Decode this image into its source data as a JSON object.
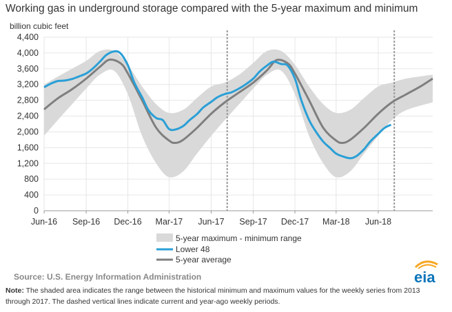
{
  "title": "Working gas in underground  storage compared with the 5-year maximum and minimum",
  "source": "Source:  U.S. Energy Information Administration",
  "note_label": "Note:",
  "note_text": " The shaded area indicates the range between the historical minimum and maximum values for the weekly series from 2013 through 2017. The dashed vertical lines indicate current and year-ago weekly periods.",
  "logo_text": "eia",
  "colors": {
    "range": "#d9d9d9",
    "lower48": "#2a9fd6",
    "average": "#7f7f7f",
    "grid": "#e6e6e6",
    "dashed": "#999999",
    "logo_blue": "#0b74b8",
    "logo_orange": "#f7a823"
  },
  "chart_data": {
    "type": "line",
    "title": "Working gas in underground  storage compared with the 5-year maximum and minimum",
    "ylabel": "billion cubic feet",
    "ylim": [
      0,
      4400
    ],
    "yticks": [
      0,
      400,
      800,
      1200,
      1600,
      2000,
      2400,
      2800,
      3200,
      3600,
      4000,
      4400
    ],
    "ytick_labels": [
      "0",
      "400",
      "800",
      "1,200",
      "1,600",
      "2,000",
      "2,400",
      "2,800",
      "3,200",
      "3,600",
      "4,000",
      "4,400"
    ],
    "xlim": [
      "2016-06-01",
      "2018-09-28"
    ],
    "xticks": [
      "2016-06-01",
      "2016-09-01",
      "2016-12-01",
      "2017-03-01",
      "2017-06-01",
      "2017-09-01",
      "2017-12-01",
      "2018-03-01",
      "2018-06-01"
    ],
    "xtick_labels": [
      "Jun-16",
      "Sep-16",
      "Dec-16",
      "Mar-17",
      "Jun-17",
      "Sep-17",
      "Dec-17",
      "Mar-18",
      "Jun-18"
    ],
    "grid": true,
    "legend_position": "bottom",
    "vlines": [
      "2017-07-06",
      "2018-07-06"
    ],
    "series": [
      {
        "name": "5-year maximum - minimum range",
        "kind": "band",
        "points": [
          [
            "2016-06-01",
            1900,
            3200
          ],
          [
            "2016-07-01",
            2300,
            3400
          ],
          [
            "2016-08-01",
            2700,
            3600
          ],
          [
            "2016-09-01",
            3100,
            3800
          ],
          [
            "2016-10-01",
            3450,
            4050
          ],
          [
            "2016-11-01",
            3550,
            4050
          ],
          [
            "2016-12-01",
            2950,
            3700
          ],
          [
            "2017-01-01",
            1900,
            3150
          ],
          [
            "2017-02-01",
            1200,
            2700
          ],
          [
            "2017-03-01",
            850,
            2480
          ],
          [
            "2017-04-01",
            1000,
            2560
          ],
          [
            "2017-05-01",
            1450,
            2860
          ],
          [
            "2017-06-01",
            1900,
            3150
          ],
          [
            "2017-07-01",
            2300,
            3250
          ],
          [
            "2017-08-01",
            2700,
            3450
          ],
          [
            "2017-09-01",
            3100,
            3750
          ],
          [
            "2017-10-01",
            3450,
            4050
          ],
          [
            "2017-11-01",
            3550,
            4050
          ],
          [
            "2017-12-01",
            2950,
            3700
          ],
          [
            "2018-01-01",
            1900,
            3150
          ],
          [
            "2018-02-01",
            1200,
            2700
          ],
          [
            "2018-03-01",
            850,
            2480
          ],
          [
            "2018-04-01",
            1000,
            2560
          ],
          [
            "2018-05-01",
            1450,
            2860
          ],
          [
            "2018-06-01",
            1900,
            3150
          ],
          [
            "2018-07-01",
            2300,
            3250
          ],
          [
            "2018-08-01",
            2550,
            3350
          ],
          [
            "2018-09-28",
            2750,
            3450
          ]
        ]
      },
      {
        "name": "Lower 48",
        "kind": "line",
        "points": [
          [
            "2016-06-01",
            3130
          ],
          [
            "2016-06-15",
            3220
          ],
          [
            "2016-07-01",
            3290
          ],
          [
            "2016-07-15",
            3300
          ],
          [
            "2016-08-01",
            3340
          ],
          [
            "2016-08-15",
            3400
          ],
          [
            "2016-09-01",
            3480
          ],
          [
            "2016-09-15",
            3600
          ],
          [
            "2016-10-01",
            3780
          ],
          [
            "2016-10-15",
            3950
          ],
          [
            "2016-11-01",
            4040
          ],
          [
            "2016-11-15",
            3990
          ],
          [
            "2016-12-01",
            3690
          ],
          [
            "2016-12-15",
            3250
          ],
          [
            "2017-01-01",
            2880
          ],
          [
            "2017-01-15",
            2550
          ],
          [
            "2017-02-01",
            2350
          ],
          [
            "2017-02-15",
            2300
          ],
          [
            "2017-03-01",
            2070
          ],
          [
            "2017-03-15",
            2060
          ],
          [
            "2017-04-01",
            2150
          ],
          [
            "2017-04-15",
            2300
          ],
          [
            "2017-05-01",
            2450
          ],
          [
            "2017-05-15",
            2620
          ],
          [
            "2017-06-01",
            2760
          ],
          [
            "2017-06-15",
            2880
          ],
          [
            "2017-07-01",
            2960
          ],
          [
            "2017-07-15",
            3000
          ],
          [
            "2017-08-01",
            3100
          ],
          [
            "2017-08-15",
            3200
          ],
          [
            "2017-09-01",
            3350
          ],
          [
            "2017-09-15",
            3530
          ],
          [
            "2017-10-01",
            3680
          ],
          [
            "2017-10-15",
            3780
          ],
          [
            "2017-11-01",
            3720
          ],
          [
            "2017-11-15",
            3680
          ],
          [
            "2017-12-01",
            3350
          ],
          [
            "2017-12-15",
            2800
          ],
          [
            "2018-01-01",
            2300
          ],
          [
            "2018-01-15",
            2020
          ],
          [
            "2018-02-01",
            1750
          ],
          [
            "2018-02-15",
            1600
          ],
          [
            "2018-03-01",
            1450
          ],
          [
            "2018-03-15",
            1380
          ],
          [
            "2018-04-01",
            1330
          ],
          [
            "2018-04-15",
            1390
          ],
          [
            "2018-05-01",
            1560
          ],
          [
            "2018-05-15",
            1760
          ],
          [
            "2018-06-01",
            1950
          ],
          [
            "2018-06-15",
            2100
          ],
          [
            "2018-06-29",
            2180
          ]
        ]
      },
      {
        "name": "5-year average",
        "kind": "line",
        "points": [
          [
            "2016-06-01",
            2570
          ],
          [
            "2016-07-01",
            2850
          ],
          [
            "2016-08-01",
            3080
          ],
          [
            "2016-09-01",
            3350
          ],
          [
            "2016-10-01",
            3650
          ],
          [
            "2016-10-22",
            3830
          ],
          [
            "2016-11-15",
            3740
          ],
          [
            "2016-12-01",
            3480
          ],
          [
            "2017-01-01",
            2800
          ],
          [
            "2017-02-01",
            2100
          ],
          [
            "2017-03-01",
            1780
          ],
          [
            "2017-03-15",
            1720
          ],
          [
            "2017-04-01",
            1800
          ],
          [
            "2017-05-01",
            2100
          ],
          [
            "2017-06-01",
            2460
          ],
          [
            "2017-07-01",
            2750
          ],
          [
            "2017-08-01",
            3000
          ],
          [
            "2017-09-01",
            3250
          ],
          [
            "2017-10-01",
            3560
          ],
          [
            "2017-10-22",
            3820
          ],
          [
            "2017-11-15",
            3740
          ],
          [
            "2017-12-01",
            3480
          ],
          [
            "2018-01-01",
            2800
          ],
          [
            "2018-02-01",
            2100
          ],
          [
            "2018-03-01",
            1780
          ],
          [
            "2018-03-15",
            1720
          ],
          [
            "2018-04-01",
            1800
          ],
          [
            "2018-05-01",
            2100
          ],
          [
            "2018-06-01",
            2460
          ],
          [
            "2018-07-01",
            2750
          ],
          [
            "2018-08-01",
            2950
          ],
          [
            "2018-09-01",
            3150
          ],
          [
            "2018-09-28",
            3350
          ]
        ]
      }
    ]
  }
}
